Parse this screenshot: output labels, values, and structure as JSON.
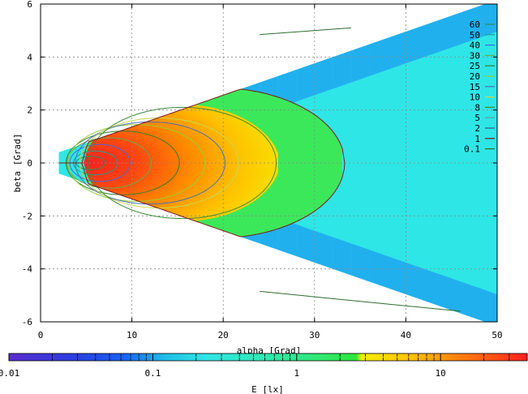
{
  "chart_data": {
    "type": "heatmap",
    "xlabel": "alpha [Grad]",
    "ylabel": "beta [Grad]",
    "xlim": [
      0,
      50
    ],
    "ylim": [
      6,
      -6
    ],
    "x_ticks": [
      0,
      10,
      20,
      30,
      40,
      50
    ],
    "y_ticks": [
      -6,
      -4,
      -2,
      0,
      2,
      4,
      6
    ],
    "x_tick_labels": [
      "0",
      "10",
      "20",
      "30",
      "40",
      "50"
    ],
    "y_tick_labels": [
      "-6",
      "-4",
      "-2",
      "0",
      "2",
      "4",
      "6"
    ],
    "grid": true,
    "colorbar": {
      "label": "E [lx]",
      "scale": "log",
      "range": [
        0.01,
        40
      ],
      "tick_labels": [
        "0.01",
        "0.1",
        "1",
        "10"
      ],
      "tick_values": [
        0.01,
        0.1,
        1,
        10
      ]
    },
    "legend": {
      "placement": "top-right",
      "entries": [
        {
          "label": "60",
          "color": "#2e8b57"
        },
        {
          "label": "50",
          "color": "#1f9e89"
        },
        {
          "label": "40",
          "color": "#4169e1"
        },
        {
          "label": "30",
          "color": "#6aa84f"
        },
        {
          "label": "25",
          "color": "#2f7f2f"
        },
        {
          "label": "20",
          "color": "#9acd32"
        },
        {
          "label": "15",
          "color": "#4a6fb5"
        },
        {
          "label": "10",
          "color": "#c8d850"
        },
        {
          "label": "8",
          "color": "#3c8a3c"
        },
        {
          "label": "5",
          "color": "#5f9ea0"
        },
        {
          "label": "2",
          "color": "#2a5a8a"
        },
        {
          "label": "1",
          "color": "#7a1a1a"
        },
        {
          "label": "0.1",
          "color": "#2e6b2e"
        }
      ]
    },
    "contour_levels": [
      60,
      50,
      40,
      30,
      25,
      20,
      15,
      10,
      8,
      5,
      2,
      1,
      0.1
    ],
    "peak": {
      "alpha": 6,
      "beta": 0
    },
    "coverage": {
      "alpha_min": 2,
      "alpha_max": 50,
      "beta_spread_per_deg": 0.12
    }
  }
}
